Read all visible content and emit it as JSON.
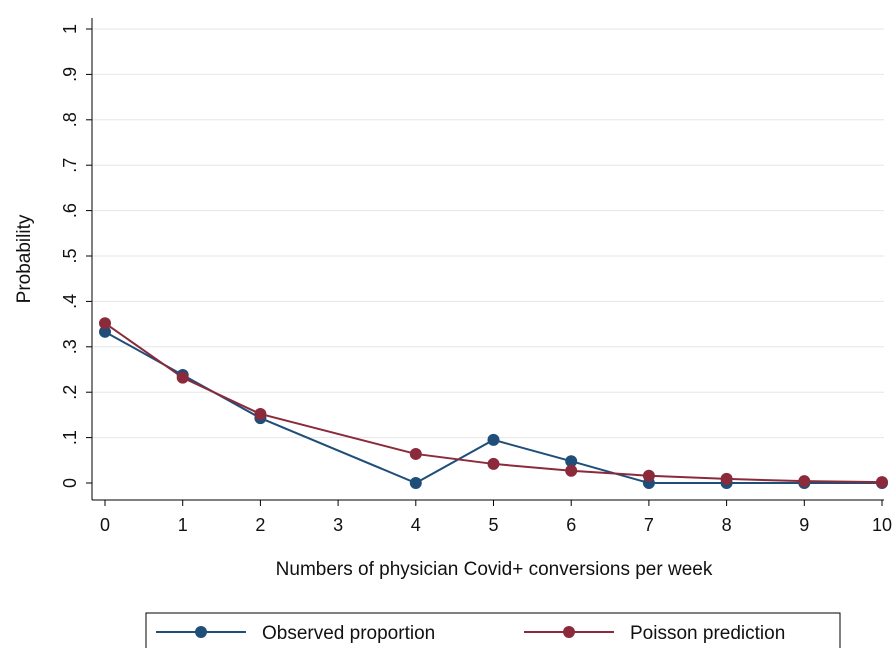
{
  "chart_data": {
    "type": "line",
    "xlabel": "Numbers of physician Covid+ conversions per week",
    "ylabel": "Probability",
    "x_ticks": [
      {
        "value": 0,
        "label": "0"
      },
      {
        "value": 1,
        "label": "1"
      },
      {
        "value": 2,
        "label": "2"
      },
      {
        "value": 3,
        "label": "3"
      },
      {
        "value": 4,
        "label": "4"
      },
      {
        "value": 5,
        "label": "5"
      },
      {
        "value": 6,
        "label": "6"
      },
      {
        "value": 7,
        "label": "7"
      },
      {
        "value": 8,
        "label": "8"
      },
      {
        "value": 9,
        "label": "9"
      },
      {
        "value": 10,
        "label": "10"
      }
    ],
    "y_ticks": [
      {
        "value": 0,
        "label": "0"
      },
      {
        "value": 0.1,
        "label": ".1"
      },
      {
        "value": 0.2,
        "label": ".2"
      },
      {
        "value": 0.3,
        "label": ".3"
      },
      {
        "value": 0.4,
        "label": ".4"
      },
      {
        "value": 0.5,
        "label": ".5"
      },
      {
        "value": 0.6,
        "label": ".6"
      },
      {
        "value": 0.7,
        "label": ".7"
      },
      {
        "value": 0.8,
        "label": ".8"
      },
      {
        "value": 0.9,
        "label": ".9"
      },
      {
        "value": 1,
        "label": "1"
      }
    ],
    "xlim": [
      0,
      10
    ],
    "ylim": [
      0,
      1
    ],
    "grid": true,
    "legend_position": "bottom",
    "series": [
      {
        "name": "Observed proportion",
        "color": "#1f4e79",
        "x": [
          0,
          1,
          2,
          4,
          5,
          6,
          7,
          8,
          9,
          10
        ],
        "y": [
          0.333,
          0.238,
          0.143,
          0.0,
          0.095,
          0.048,
          0.0,
          0.0,
          0.0,
          0.0
        ]
      },
      {
        "name": "Poisson prediction",
        "color": "#8b2a3a",
        "x": [
          0,
          1,
          2,
          4,
          5,
          6,
          7,
          8,
          9,
          10
        ],
        "y": [
          0.352,
          0.232,
          0.152,
          0.064,
          0.042,
          0.027,
          0.016,
          0.009,
          0.004,
          0.002
        ]
      }
    ]
  }
}
